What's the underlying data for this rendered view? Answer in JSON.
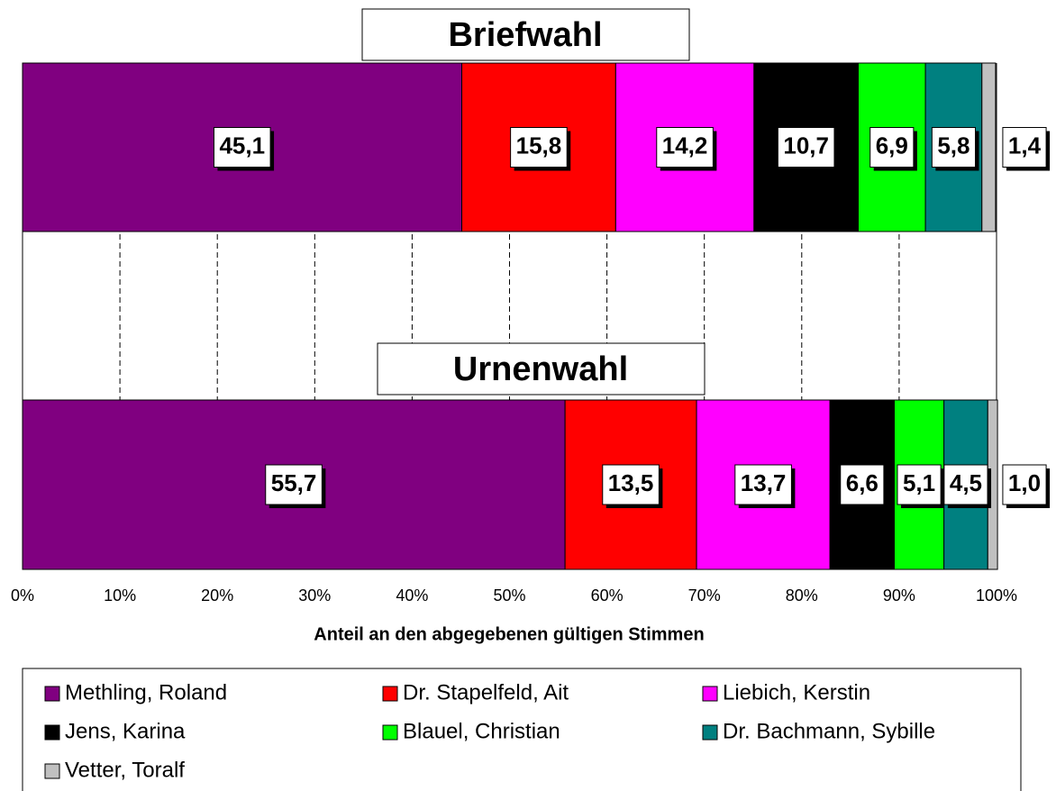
{
  "chart_data": {
    "type": "stacked_bar_horizontal",
    "categories": [
      "Briefwahl",
      "Urnenwahl"
    ],
    "x_label": "Anteil an den abgegebenen gültigen Stimmen",
    "xlim": [
      0,
      100
    ],
    "xticks": [
      {
        "value": 0,
        "label": "0%"
      },
      {
        "value": 10,
        "label": "10%"
      },
      {
        "value": 20,
        "label": "20%"
      },
      {
        "value": 30,
        "label": "30%"
      },
      {
        "value": 40,
        "label": "40%"
      },
      {
        "value": 50,
        "label": "50%"
      },
      {
        "value": 60,
        "label": "60%"
      },
      {
        "value": 70,
        "label": "70%"
      },
      {
        "value": 80,
        "label": "80%"
      },
      {
        "value": 90,
        "label": "90%"
      },
      {
        "value": 100,
        "label": "100%"
      }
    ],
    "grid": true,
    "series": [
      {
        "name": "Methling, Roland",
        "color": "#800080",
        "values": [
          45.1,
          55.7
        ],
        "value_labels": [
          "45,1",
          "55,7"
        ]
      },
      {
        "name": "Dr. Stapelfeld, Ait",
        "color": "#ff0000",
        "values": [
          15.8,
          13.5
        ],
        "value_labels": [
          "15,8",
          "13,5"
        ]
      },
      {
        "name": "Liebich, Kerstin",
        "color": "#ff00ff",
        "values": [
          14.2,
          13.7
        ],
        "value_labels": [
          "14,2",
          "13,7"
        ]
      },
      {
        "name": "Jens, Karina",
        "color": "#000000",
        "values": [
          10.7,
          6.6
        ],
        "value_labels": [
          "10,7",
          "6,6"
        ]
      },
      {
        "name": "Blauel, Christian",
        "color": "#00ff00",
        "values": [
          6.9,
          5.1
        ],
        "value_labels": [
          "6,9",
          "5,1"
        ]
      },
      {
        "name": "Dr. Bachmann, Sybille",
        "color": "#008080",
        "values": [
          5.8,
          4.5
        ],
        "value_labels": [
          "5,8",
          "4,5"
        ]
      },
      {
        "name": "Vetter, Toralf",
        "color": "#c0c0c0",
        "values": [
          1.4,
          1.0
        ],
        "value_labels": [
          "1,4",
          "1,0"
        ]
      }
    ]
  }
}
